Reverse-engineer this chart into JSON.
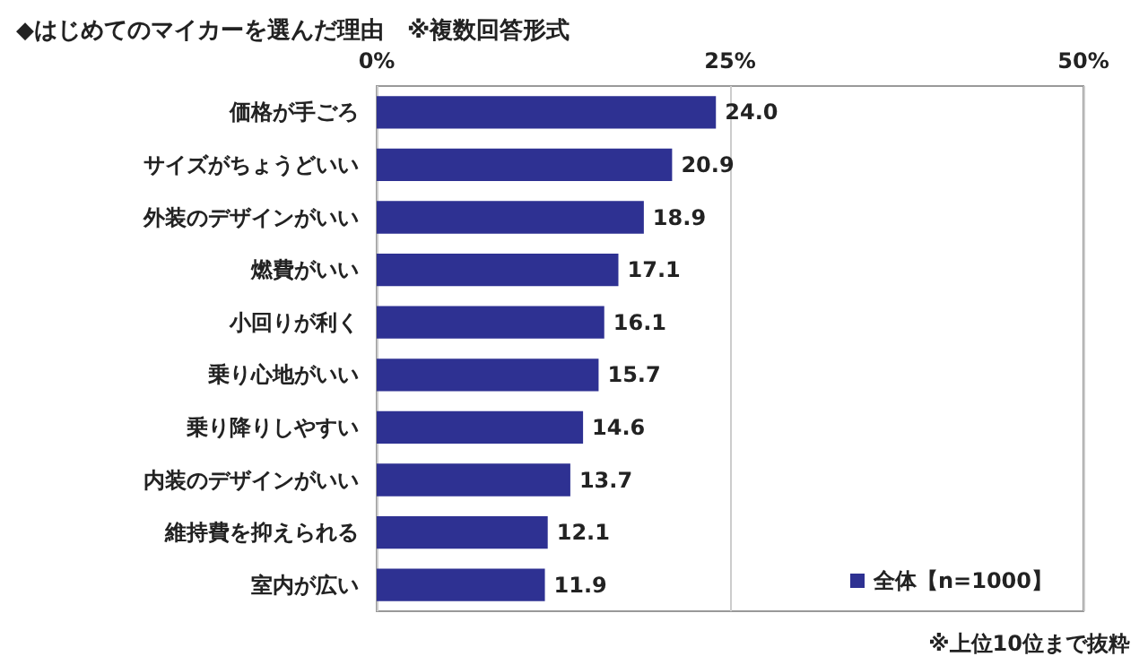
{
  "chart_data": {
    "type": "bar",
    "orientation": "horizontal",
    "title": "◆はじめてのマイカーを選んだ理由　※複数回答形式",
    "categories": [
      "価格が手ごろ",
      "サイズがちょうどいい",
      "外装のデザインがいい",
      "燃費がいい",
      "小回りが利く",
      "乗り心地がいい",
      "乗り降りしやすい",
      "内装のデザインがいい",
      "維持費を抑えられる",
      "室内が広い"
    ],
    "series": [
      {
        "name": "全体【n=1000】",
        "color": "#2e3192",
        "values": [
          24.0,
          20.9,
          18.9,
          17.1,
          16.1,
          15.7,
          14.6,
          13.7,
          12.1,
          11.9
        ],
        "value_labels": [
          "24.0",
          "20.9",
          "18.9",
          "17.1",
          "16.1",
          "15.7",
          "14.6",
          "13.7",
          "12.1",
          "11.9"
        ]
      }
    ],
    "xlim": [
      0,
      50
    ],
    "xticks": [
      {
        "value": 0,
        "label": "0%"
      },
      {
        "value": 25,
        "label": "25%"
      },
      {
        "value": 50,
        "label": "50%"
      }
    ],
    "grid": "x",
    "legend": "bottom right",
    "annotations": [
      "※上位10位まで抜粋"
    ]
  }
}
